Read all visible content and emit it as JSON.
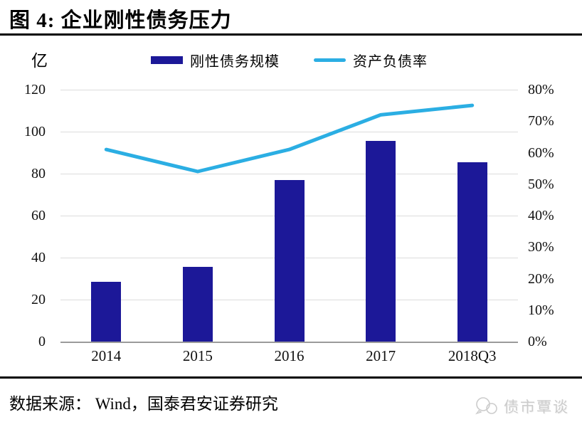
{
  "title": "图 4: 企业刚性债务压力",
  "unit_label": "亿",
  "legend": [
    {
      "label": "刚性债务规模",
      "type": "bar",
      "color": "#1C1898"
    },
    {
      "label": "资产负债率",
      "type": "line",
      "color": "#2BAEE3"
    }
  ],
  "source": "数据来源： Wind，国泰君安证券研究",
  "watermark": "债市覃谈",
  "chart_data": {
    "type": "bar",
    "subtype": "bar+line dual-axis",
    "title": "企业刚性债务压力",
    "categories": [
      "2014",
      "2015",
      "2016",
      "2017",
      "2018Q3"
    ],
    "series": [
      {
        "name": "刚性债务规模",
        "type": "bar",
        "axis": "left",
        "unit": "亿",
        "color": "#1C1898",
        "values": [
          28.5,
          35.5,
          77,
          95.5,
          85.5
        ]
      },
      {
        "name": "资产负债率",
        "type": "line",
        "axis": "right",
        "unit": "%",
        "color": "#2BAEE3",
        "values": [
          61,
          54,
          61,
          72,
          75
        ]
      }
    ],
    "left_axis": {
      "label": "亿",
      "min": 0,
      "max": 120,
      "ticks": [
        "120",
        "100",
        "80",
        "60",
        "40",
        "20",
        "0"
      ]
    },
    "right_axis": {
      "label": "%",
      "min": 0,
      "max": 80,
      "ticks": [
        "80%",
        "70%",
        "60%",
        "50%",
        "40%",
        "30%",
        "20%",
        "10%",
        "0%"
      ]
    },
    "grid": true,
    "legend_position": "top"
  }
}
